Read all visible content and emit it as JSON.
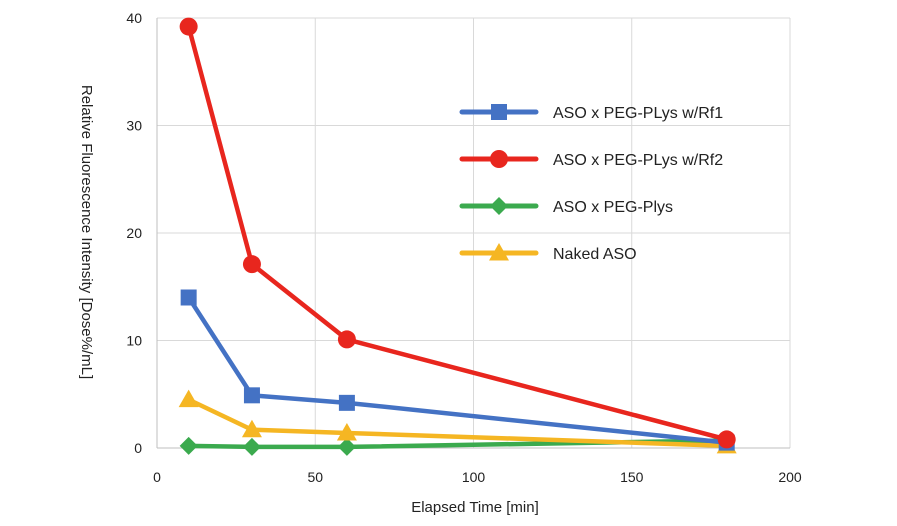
{
  "chart_data": {
    "type": "line",
    "title": "",
    "xlabel": "Elapsed Time [min]",
    "ylabel": "Relative Fluorescence Intensity [Dose%/mL]",
    "xlim": [
      0,
      200
    ],
    "ylim": [
      0,
      40
    ],
    "xticks": [
      0,
      50,
      100,
      150,
      200
    ],
    "yticks": [
      0,
      10,
      20,
      30,
      40
    ],
    "grid": true,
    "legend_position": "right",
    "series": [
      {
        "name": "ASO x PEG-PLys w/Rf1",
        "color": "#4472C4",
        "marker": "square",
        "x": [
          10,
          30,
          60,
          180
        ],
        "y": [
          14.0,
          4.9,
          4.2,
          0.5
        ]
      },
      {
        "name": "ASO x PEG-PLys w/Rf2",
        "color": "#E8261E",
        "marker": "circle",
        "x": [
          10,
          30,
          60,
          180
        ],
        "y": [
          39.2,
          17.1,
          10.1,
          0.8
        ]
      },
      {
        "name": "ASO x PEG-Plys",
        "color": "#3BAA4E",
        "marker": "diamond",
        "x": [
          10,
          30,
          60,
          180
        ],
        "y": [
          0.2,
          0.1,
          0.1,
          0.7
        ]
      },
      {
        "name": "Naked ASO",
        "color": "#F5B623",
        "marker": "triangle",
        "x": [
          10,
          30,
          60,
          180
        ],
        "y": [
          4.5,
          1.7,
          1.4,
          0.2
        ]
      }
    ]
  }
}
